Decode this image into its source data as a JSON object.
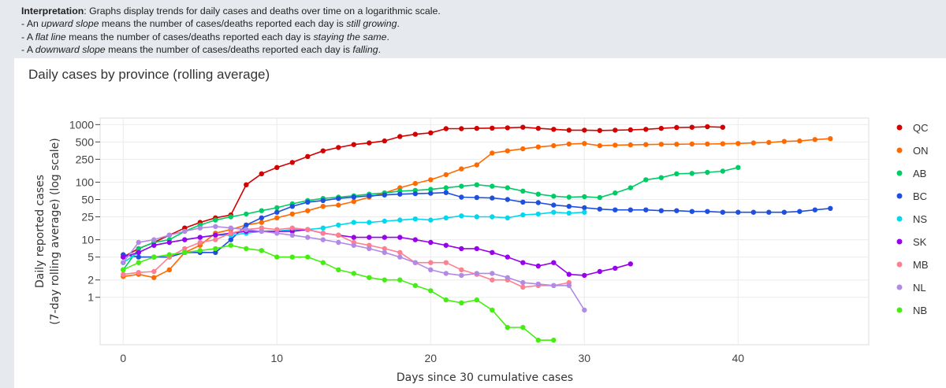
{
  "interpretation": {
    "label": "Interpretation",
    "text": ": Graphs display trends for daily cases and deaths over time on a logarithmic scale.",
    "up_prefix": "- An ",
    "up_em": "upward slope",
    "up_mid": " means the number of cases/deaths reported each day is ",
    "up_end": "still growing",
    "flat_prefix": "- A ",
    "flat_em": "flat line",
    "flat_mid": " means the number of cases/deaths reported each day is ",
    "flat_end": "staying the same",
    "down_prefix": "- A ",
    "down_em": "downward slope",
    "down_mid": " means the number of cases/deaths reported each day is ",
    "down_end": "falling"
  },
  "chart_data": {
    "type": "line",
    "title": "Daily cases by province (rolling average)",
    "xlabel": "Days since 30 cumulative cases",
    "ylabel_line1": "Daily reported cases",
    "ylabel_line2": "(7-day rolling average) (log scale)",
    "y_scale": "log",
    "xlim": [
      -1.5,
      48.5
    ],
    "ylim": [
      0.15,
      1300
    ],
    "x_ticks": [
      0,
      10,
      20,
      30,
      40
    ],
    "y_ticks": [
      {
        "value": 1000,
        "label": "1000"
      },
      {
        "value": 500,
        "label": "500"
      },
      {
        "value": 250,
        "label": "250"
      },
      {
        "value": 100,
        "label": "100"
      },
      {
        "value": 50,
        "label": "50"
      },
      {
        "value": 25,
        "label": "25"
      },
      {
        "value": 10,
        "label": "10"
      },
      {
        "value": 5,
        "label": "5"
      },
      {
        "value": 2,
        "label": "2"
      },
      {
        "value": 1,
        "label": "1"
      }
    ],
    "grid": true,
    "legend_position": "right",
    "series": [
      {
        "name": "QC",
        "color": "#d40000",
        "x": [
          0,
          1,
          2,
          3,
          4,
          5,
          6,
          7,
          8,
          9,
          10,
          11,
          12,
          13,
          14,
          15,
          16,
          17,
          18,
          19,
          20,
          21,
          22,
          23,
          24,
          25,
          26,
          27,
          28,
          29,
          30,
          31,
          32,
          33,
          34,
          35,
          36,
          37,
          38,
          39
        ],
        "y": [
          5,
          7,
          9,
          12,
          16,
          20,
          24,
          27,
          90,
          140,
          180,
          220,
          280,
          350,
          400,
          450,
          480,
          520,
          620,
          680,
          720,
          850,
          850,
          860,
          870,
          880,
          900,
          860,
          830,
          800,
          800,
          790,
          800,
          810,
          830,
          860,
          890,
          900,
          920,
          900
        ]
      },
      {
        "name": "ON",
        "color": "#ff6a00",
        "x": [
          0,
          1,
          2,
          3,
          4,
          5,
          6,
          7,
          8,
          9,
          10,
          11,
          12,
          13,
          14,
          15,
          16,
          17,
          18,
          19,
          20,
          21,
          22,
          23,
          24,
          25,
          26,
          27,
          28,
          29,
          30,
          31,
          32,
          33,
          34,
          35,
          36,
          37,
          38,
          39,
          40,
          41,
          42,
          43,
          44,
          45,
          46
        ],
        "y": [
          2.3,
          2.5,
          2.2,
          3,
          6,
          8,
          13,
          15,
          18,
          20,
          24,
          28,
          32,
          38,
          40,
          46,
          55,
          65,
          80,
          95,
          110,
          135,
          170,
          200,
          320,
          350,
          380,
          410,
          430,
          460,
          470,
          430,
          440,
          445,
          450,
          455,
          455,
          460,
          460,
          465,
          470,
          480,
          490,
          510,
          520,
          550,
          570
        ]
      },
      {
        "name": "AB",
        "color": "#00cc66",
        "x": [
          0,
          1,
          2,
          3,
          4,
          5,
          6,
          7,
          8,
          9,
          10,
          11,
          12,
          13,
          14,
          15,
          16,
          17,
          18,
          19,
          20,
          21,
          22,
          23,
          24,
          25,
          26,
          27,
          28,
          29,
          30,
          31,
          32,
          33,
          34,
          35,
          36,
          37,
          38,
          39,
          40
        ],
        "y": [
          3,
          7,
          9,
          10,
          14,
          18,
          22,
          25,
          28,
          32,
          36,
          42,
          48,
          52,
          55,
          58,
          62,
          65,
          70,
          72,
          75,
          80,
          85,
          90,
          85,
          80,
          70,
          62,
          57,
          55,
          56,
          54,
          65,
          80,
          110,
          120,
          140,
          142,
          148,
          155,
          180
        ]
      },
      {
        "name": "BC",
        "color": "#1f4fe0",
        "x": [
          0,
          1,
          2,
          3,
          4,
          5,
          6,
          7,
          8,
          9,
          10,
          11,
          12,
          13,
          14,
          15,
          16,
          17,
          18,
          19,
          20,
          21,
          22,
          23,
          24,
          25,
          26,
          27,
          28,
          29,
          30,
          31,
          32,
          33,
          34,
          35,
          36,
          37,
          38,
          39,
          40,
          41,
          42,
          43,
          44,
          45,
          46
        ],
        "y": [
          5.5,
          5,
          5,
          5,
          6,
          6,
          6,
          10,
          18,
          24,
          30,
          38,
          45,
          48,
          52,
          55,
          58,
          60,
          62,
          63,
          64,
          66,
          55,
          54,
          53,
          50,
          45,
          44,
          40,
          38,
          36,
          34,
          33,
          33,
          33,
          32,
          32,
          31,
          31,
          30,
          30,
          30,
          30,
          30,
          31,
          33,
          35
        ]
      },
      {
        "name": "NS",
        "color": "#00d8f0",
        "x": [
          0,
          1,
          2,
          3,
          4,
          5,
          6,
          7,
          8,
          9,
          10,
          11,
          12,
          13,
          14,
          15,
          16,
          17,
          18,
          19,
          20,
          21,
          22,
          23,
          24,
          25,
          26,
          27,
          28,
          29,
          30
        ],
        "y": [
          4,
          6,
          8,
          9,
          10,
          11,
          12,
          12,
          13,
          14,
          14,
          15,
          15,
          16,
          18,
          20,
          20,
          21,
          22,
          23,
          22,
          24,
          26,
          25,
          25,
          24,
          27,
          28,
          30,
          29,
          30
        ]
      },
      {
        "name": "SK",
        "color": "#9900ee",
        "x": [
          0,
          1,
          2,
          3,
          4,
          5,
          6,
          7,
          8,
          9,
          10,
          11,
          12,
          13,
          14,
          15,
          16,
          17,
          18,
          19,
          20,
          21,
          22,
          23,
          24,
          25,
          26,
          27,
          28,
          29,
          30,
          31,
          32,
          33
        ],
        "y": [
          5,
          6,
          8,
          9,
          10,
          11,
          12,
          13,
          14,
          14,
          14,
          14,
          15,
          13,
          12,
          11,
          11,
          11,
          11,
          10,
          9,
          8,
          7,
          7,
          6,
          5,
          4,
          3.5,
          4,
          2.5,
          2.4,
          2.8,
          3.2,
          3.8
        ]
      },
      {
        "name": "MB",
        "color": "#ff7f90",
        "x": [
          0,
          1,
          2,
          3,
          4,
          5,
          6,
          7,
          8,
          9,
          10,
          11,
          12,
          13,
          14,
          15,
          16,
          17,
          18,
          19,
          20,
          21,
          22,
          23,
          24,
          25,
          26,
          27,
          28,
          29
        ],
        "y": [
          2.5,
          2.7,
          2.8,
          5,
          7,
          9,
          10,
          13,
          15,
          16,
          15,
          16,
          15,
          13,
          12,
          9,
          8,
          7,
          6,
          4,
          4,
          4,
          3,
          2.5,
          2,
          2,
          1.5,
          1.6,
          1.6,
          1.8
        ]
      },
      {
        "name": "NL",
        "color": "#b18ae6",
        "x": [
          0,
          1,
          2,
          3,
          4,
          5,
          6,
          7,
          8,
          9,
          10,
          11,
          12,
          13,
          14,
          15,
          16,
          17,
          18,
          19,
          20,
          21,
          22,
          23,
          24,
          25,
          26,
          27,
          28,
          29,
          30
        ],
        "y": [
          4,
          9,
          10,
          12,
          14,
          16,
          17,
          16,
          15,
          14,
          13,
          12,
          11,
          10,
          9,
          8,
          7,
          6,
          5,
          4,
          3,
          2.6,
          2.4,
          2.6,
          2.6,
          2.2,
          1.8,
          1.7,
          1.6,
          1.6,
          0.6
        ]
      },
      {
        "name": "NB",
        "color": "#44ee11",
        "x": [
          0,
          1,
          2,
          3,
          4,
          5,
          6,
          7,
          8,
          9,
          10,
          11,
          12,
          13,
          14,
          15,
          16,
          17,
          18,
          19,
          20,
          21,
          22,
          23,
          24,
          25,
          26,
          27,
          28
        ],
        "y": [
          3,
          4,
          5,
          5.5,
          6,
          6.5,
          7,
          8,
          7,
          6.5,
          5,
          5,
          5,
          4,
          3,
          2.6,
          2.2,
          2,
          2,
          1.6,
          1.3,
          0.9,
          0.8,
          0.9,
          0.6,
          0.3,
          0.3,
          0.18,
          0.18
        ]
      }
    ]
  }
}
